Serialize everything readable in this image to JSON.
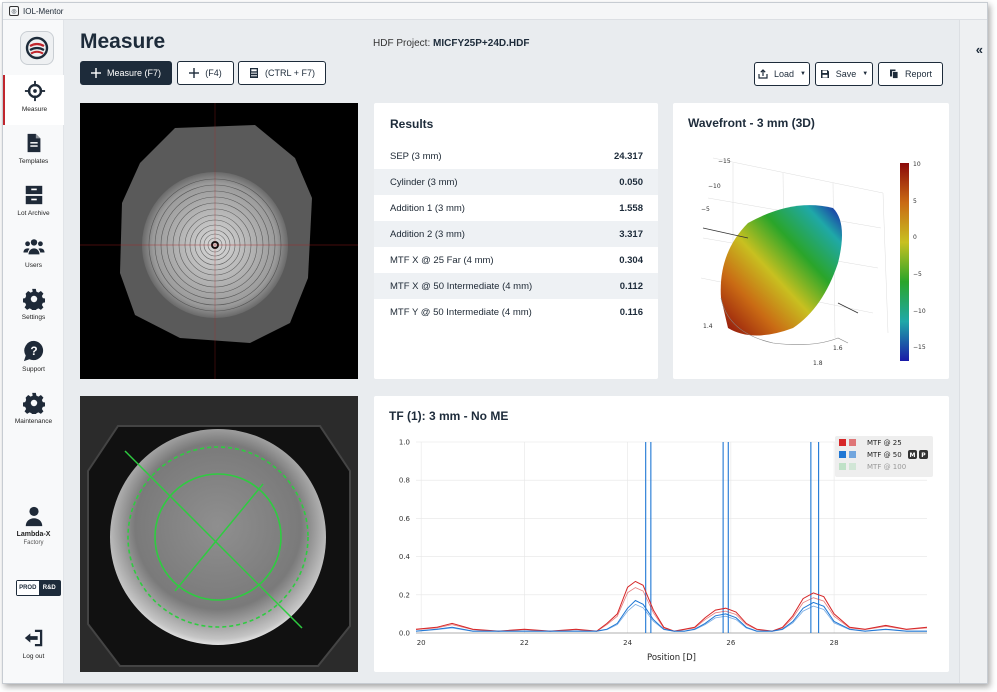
{
  "window": {
    "title": "IOL-Mentor"
  },
  "sidebar": {
    "items": [
      {
        "label": "Measure",
        "icon": "crosshair-icon",
        "active": true
      },
      {
        "label": "Templates",
        "icon": "document-icon"
      },
      {
        "label": "Lot Archive",
        "icon": "archive-icon"
      },
      {
        "label": "Users",
        "icon": "users-icon"
      },
      {
        "label": "Settings",
        "icon": "gear-icon"
      },
      {
        "label": "Support",
        "icon": "question-icon"
      },
      {
        "label": "Maintenance",
        "icon": "gear-icon"
      }
    ],
    "user": {
      "name": "Lambda-X",
      "role": "Factory"
    },
    "env": {
      "prod": "PROD",
      "rnd": "R&D",
      "selected": "R&D"
    },
    "logout": "Log out"
  },
  "header": {
    "title": "Measure",
    "project_label": "HDF Project:",
    "project_name": "MICFY25P+24D.HDF"
  },
  "toolbar": {
    "measure": "Measure (F7)",
    "f4": "(F4)",
    "ctrl_f7": "(CTRL + F7)",
    "load": "Load",
    "save": "Save",
    "report": "Report"
  },
  "results": {
    "title": "Results",
    "rows": [
      {
        "label": "SEP (3 mm)",
        "value": "24.317"
      },
      {
        "label": "Cylinder (3 mm)",
        "value": "0.050"
      },
      {
        "label": "Addition 1 (3 mm)",
        "value": "1.558"
      },
      {
        "label": "Addition 2 (3 mm)",
        "value": "3.317"
      },
      {
        "label": "MTF X @ 25 Far (4 mm)",
        "value": "0.304"
      },
      {
        "label": "MTF X @ 50 Intermediate (4 mm)",
        "value": "0.112"
      },
      {
        "label": "MTF Y @ 50 Intermediate (4 mm)",
        "value": "0.116"
      }
    ]
  },
  "wavefront": {
    "title": "Wavefront - 3 mm (3D)",
    "colorbar_ticks": [
      "10",
      "5",
      "0",
      "−5",
      "−10",
      "−15"
    ],
    "axis_ticks_left": [
      "−15",
      "−10",
      "−5"
    ],
    "axis_ticks_bottom": [
      "1.4",
      "1.6",
      "1.8"
    ],
    "colors": {
      "top": "#8b0a0a",
      "mid": "#2aa52a",
      "bottom": "#1a1aa8"
    }
  },
  "chart_data": {
    "type": "line",
    "title": "TF (1): 3 mm - No ME",
    "xlabel": "Position [D]",
    "ylabel": "",
    "xlim": [
      19.9,
      29.8
    ],
    "ylim": [
      0,
      1.0
    ],
    "x_ticks": [
      20,
      22,
      24,
      26,
      28
    ],
    "y_ticks": [
      "0.0",
      "0.2",
      "0.4",
      "0.6",
      "0.8",
      "1.0"
    ],
    "grid": true,
    "legend_position": "top-right",
    "legend": [
      {
        "name": "MTF @ 25",
        "color": "#d62728"
      },
      {
        "name": "MTF @ 50",
        "color": "#1f77d4",
        "badges": [
          "M",
          "P"
        ]
      },
      {
        "name": "MTF @ 100",
        "color": "#90d4a0",
        "muted": true
      }
    ],
    "vlines": [
      24.35,
      24.45,
      25.85,
      25.95,
      27.55,
      27.7
    ],
    "series": [
      {
        "name": "MTF @ 25",
        "color": "#d62728",
        "x": [
          19.9,
          20.3,
          20.6,
          21.0,
          21.5,
          22.0,
          22.5,
          23.0,
          23.4,
          23.6,
          23.8,
          24.0,
          24.15,
          24.3,
          24.5,
          24.7,
          24.9,
          25.1,
          25.3,
          25.5,
          25.7,
          25.9,
          26.1,
          26.3,
          26.5,
          26.8,
          27.0,
          27.2,
          27.4,
          27.6,
          27.8,
          28.0,
          28.3,
          28.6,
          29.0,
          29.4,
          29.8
        ],
        "values": [
          0.02,
          0.03,
          0.05,
          0.02,
          0.01,
          0.02,
          0.01,
          0.02,
          0.01,
          0.05,
          0.1,
          0.24,
          0.27,
          0.25,
          0.12,
          0.03,
          0.01,
          0.02,
          0.03,
          0.08,
          0.12,
          0.13,
          0.11,
          0.05,
          0.02,
          0.01,
          0.03,
          0.09,
          0.18,
          0.21,
          0.19,
          0.1,
          0.03,
          0.02,
          0.04,
          0.02,
          0.03
        ]
      },
      {
        "name": "MTF @ 50",
        "color": "#1f77d4",
        "x": [
          19.9,
          20.3,
          20.6,
          21.0,
          21.5,
          22.0,
          22.5,
          23.0,
          23.4,
          23.6,
          23.8,
          24.0,
          24.15,
          24.3,
          24.5,
          24.7,
          24.9,
          25.1,
          25.3,
          25.5,
          25.7,
          25.9,
          26.1,
          26.3,
          26.5,
          26.8,
          27.0,
          27.2,
          27.4,
          27.6,
          27.8,
          28.0,
          28.3,
          28.6,
          29.0,
          29.4,
          29.8
        ],
        "values": [
          0.01,
          0.02,
          0.03,
          0.01,
          0.01,
          0.01,
          0.01,
          0.01,
          0.01,
          0.02,
          0.05,
          0.13,
          0.17,
          0.15,
          0.07,
          0.02,
          0.01,
          0.01,
          0.02,
          0.05,
          0.09,
          0.1,
          0.08,
          0.03,
          0.01,
          0.01,
          0.02,
          0.06,
          0.13,
          0.16,
          0.14,
          0.06,
          0.02,
          0.01,
          0.02,
          0.01,
          0.01
        ]
      }
    ]
  }
}
